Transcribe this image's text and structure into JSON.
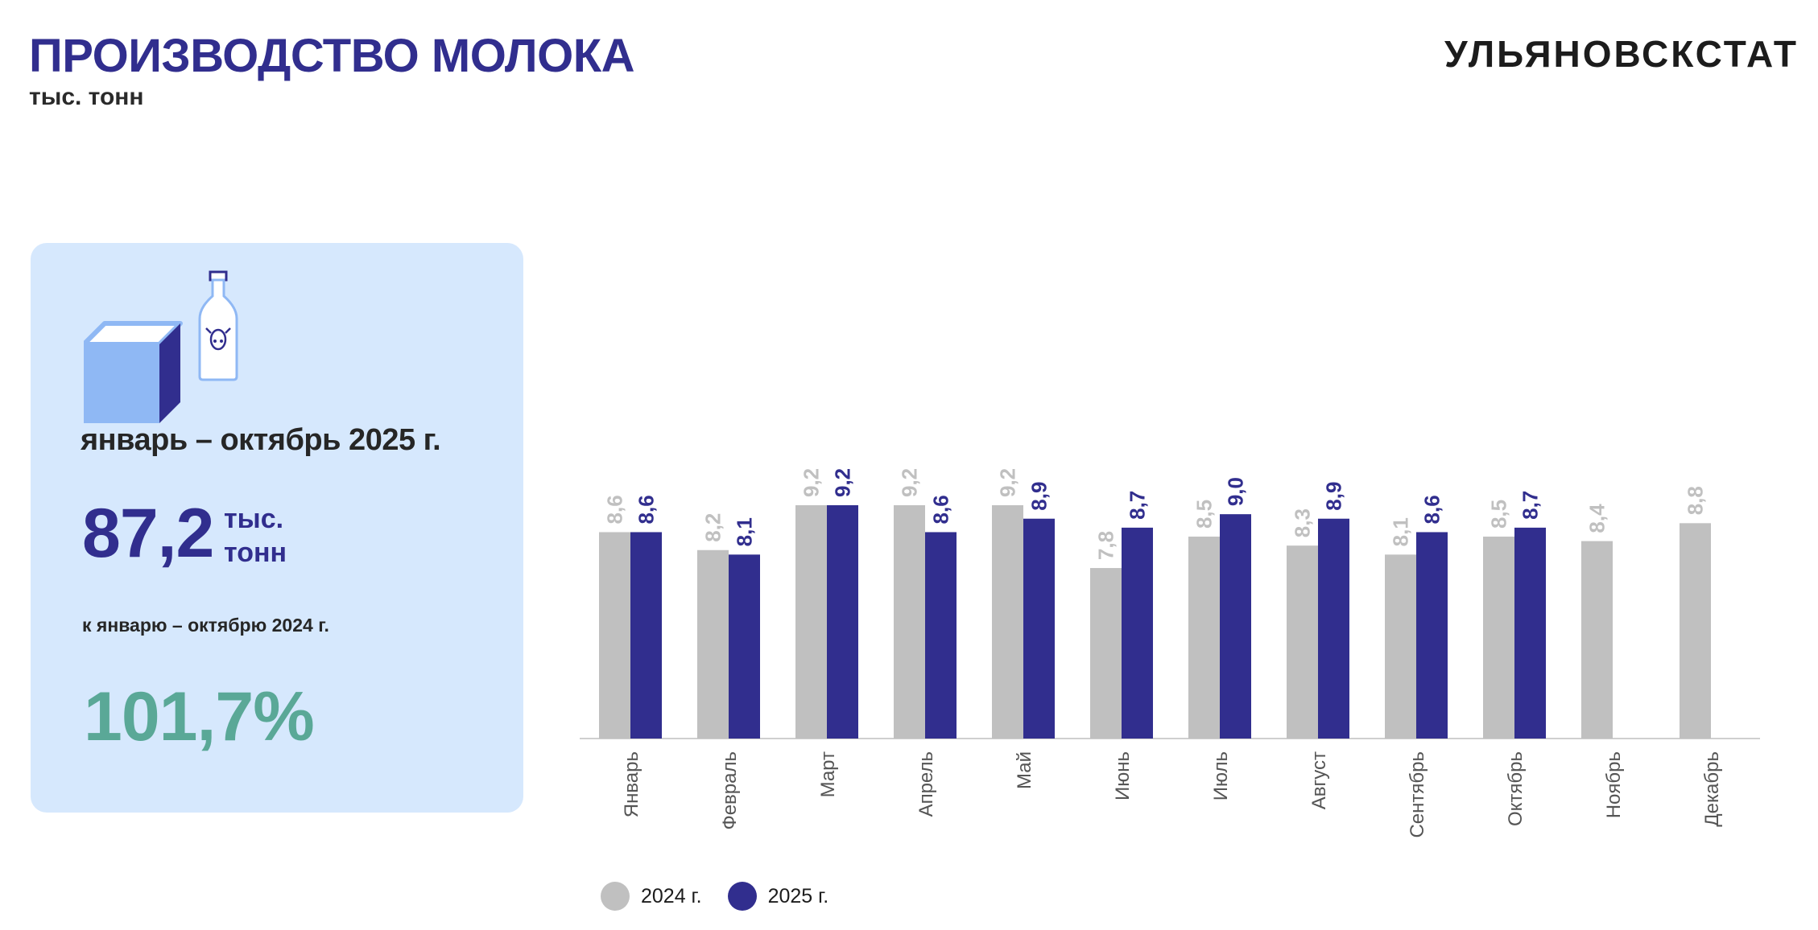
{
  "header": {
    "title": "ПРОИЗВОДСТВО МОЛОКА",
    "subtitle": "тыс. тонн",
    "brand": "УЛЬЯНОВСКСТАТ"
  },
  "summary": {
    "icon": "milk-carton-and-bottle-icon",
    "period": "январь – октябрь 2025 г.",
    "value": "87,2",
    "unit_line1": "тыс.",
    "unit_line2": "тонн",
    "compare_label": "к январю – октябрю 2024 г.",
    "percent": "101,7%"
  },
  "chart_data": {
    "type": "bar",
    "categories": [
      "Январь",
      "Февраль",
      "Март",
      "Апрель",
      "Май",
      "Июнь",
      "Июль",
      "Август",
      "Сентябрь",
      "Октябрь",
      "Ноябрь",
      "Декабрь"
    ],
    "series": [
      {
        "name": "2024 г.",
        "color": "#c0c0c0",
        "values": [
          8.6,
          8.2,
          9.2,
          9.2,
          9.2,
          7.8,
          8.5,
          8.3,
          8.1,
          8.5,
          8.4,
          8.8
        ],
        "labels": [
          "8,6",
          "8,2",
          "9,2",
          "9,2",
          "9,2",
          "7,8",
          "8,5",
          "8,3",
          "8,1",
          "8,5",
          "8,4",
          "8,8"
        ]
      },
      {
        "name": "2025 г.",
        "color": "#312e8e",
        "values": [
          8.6,
          8.1,
          9.2,
          8.6,
          8.9,
          8.7,
          9.0,
          8.9,
          8.6,
          8.7,
          null,
          null
        ],
        "labels": [
          "8,6",
          "8,1",
          "9,2",
          "8,6",
          "8,9",
          "8,7",
          "9,0",
          "8,9",
          "8,6",
          "8,7",
          "",
          ""
        ]
      }
    ],
    "ylim": [
      4,
      10
    ],
    "grid": false,
    "legend_position": "bottom-left"
  }
}
